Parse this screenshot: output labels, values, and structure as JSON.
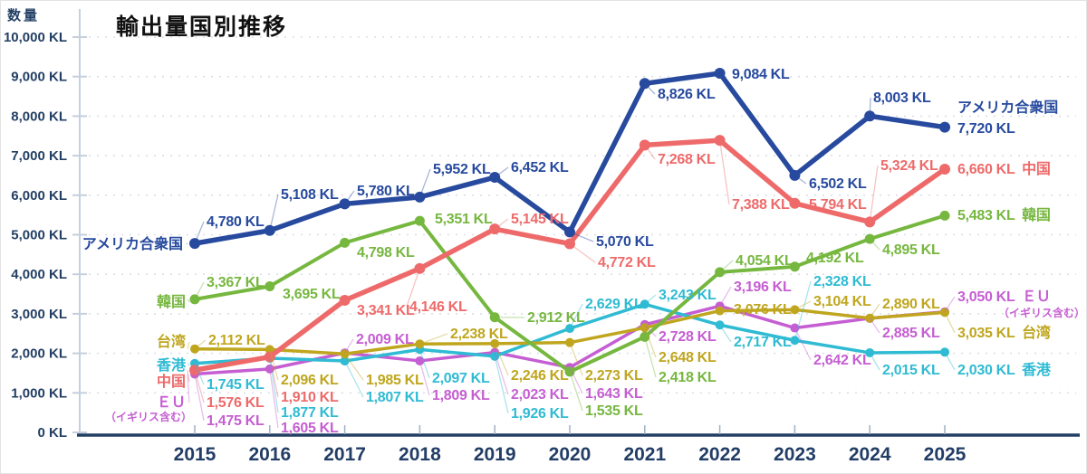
{
  "page": {
    "title": "輸出量国別推移"
  },
  "y_axis": {
    "label": "数量",
    "unit": "KL",
    "min": 0,
    "max": 10000,
    "step": 1000
  },
  "x_axis": {
    "years": [
      "2015",
      "2016",
      "2017",
      "2018",
      "2019",
      "2020",
      "2021",
      "2022",
      "2023",
      "2024",
      "2025"
    ]
  },
  "chart_data": {
    "type": "line",
    "title": "輸出量国別推移",
    "x": [
      2015,
      2016,
      2017,
      2018,
      2019,
      2020,
      2021,
      2022,
      2023,
      2024,
      2025
    ],
    "xlabel": "",
    "ylabel": "数量",
    "unit": "KL",
    "ylim": [
      0,
      10000
    ],
    "grid": true,
    "legend_position": "inline-both-ends",
    "series": [
      {
        "id": "usa",
        "name": "アメリカ合衆国",
        "color": "#274a9e",
        "values": [
          4780,
          5108,
          5780,
          5952,
          6452,
          5070,
          8826,
          9084,
          6502,
          8003,
          7720
        ]
      },
      {
        "id": "china",
        "name": "中国",
        "color": "#ee6a6a",
        "values": [
          1576,
          1910,
          3341,
          4146,
          5145,
          4772,
          7268,
          7388,
          5794,
          5324,
          6660
        ]
      },
      {
        "id": "korea",
        "name": "韓国",
        "color": "#76b73f",
        "values": [
          3367,
          3695,
          4798,
          5351,
          2912,
          1535,
          2418,
          4054,
          4192,
          4895,
          5483
        ]
      },
      {
        "id": "taiwan",
        "name": "台湾",
        "color": "#bfa61e",
        "values": [
          2112,
          2096,
          1985,
          2238,
          2246,
          2273,
          2648,
          3076,
          3104,
          2890,
          3035
        ]
      },
      {
        "id": "hongkong",
        "name": "香港",
        "color": "#2fbbd3",
        "values": [
          1745,
          1877,
          1807,
          2097,
          1926,
          2629,
          3243,
          2717,
          2328,
          2015,
          2030
        ]
      },
      {
        "id": "eu",
        "name": "ＥＵ",
        "name_note": "（イギリス含む）",
        "color": "#c55ed2",
        "values": [
          1475,
          1605,
          2009,
          1809,
          2023,
          1643,
          2728,
          3196,
          2642,
          2885,
          3050
        ]
      }
    ]
  }
}
